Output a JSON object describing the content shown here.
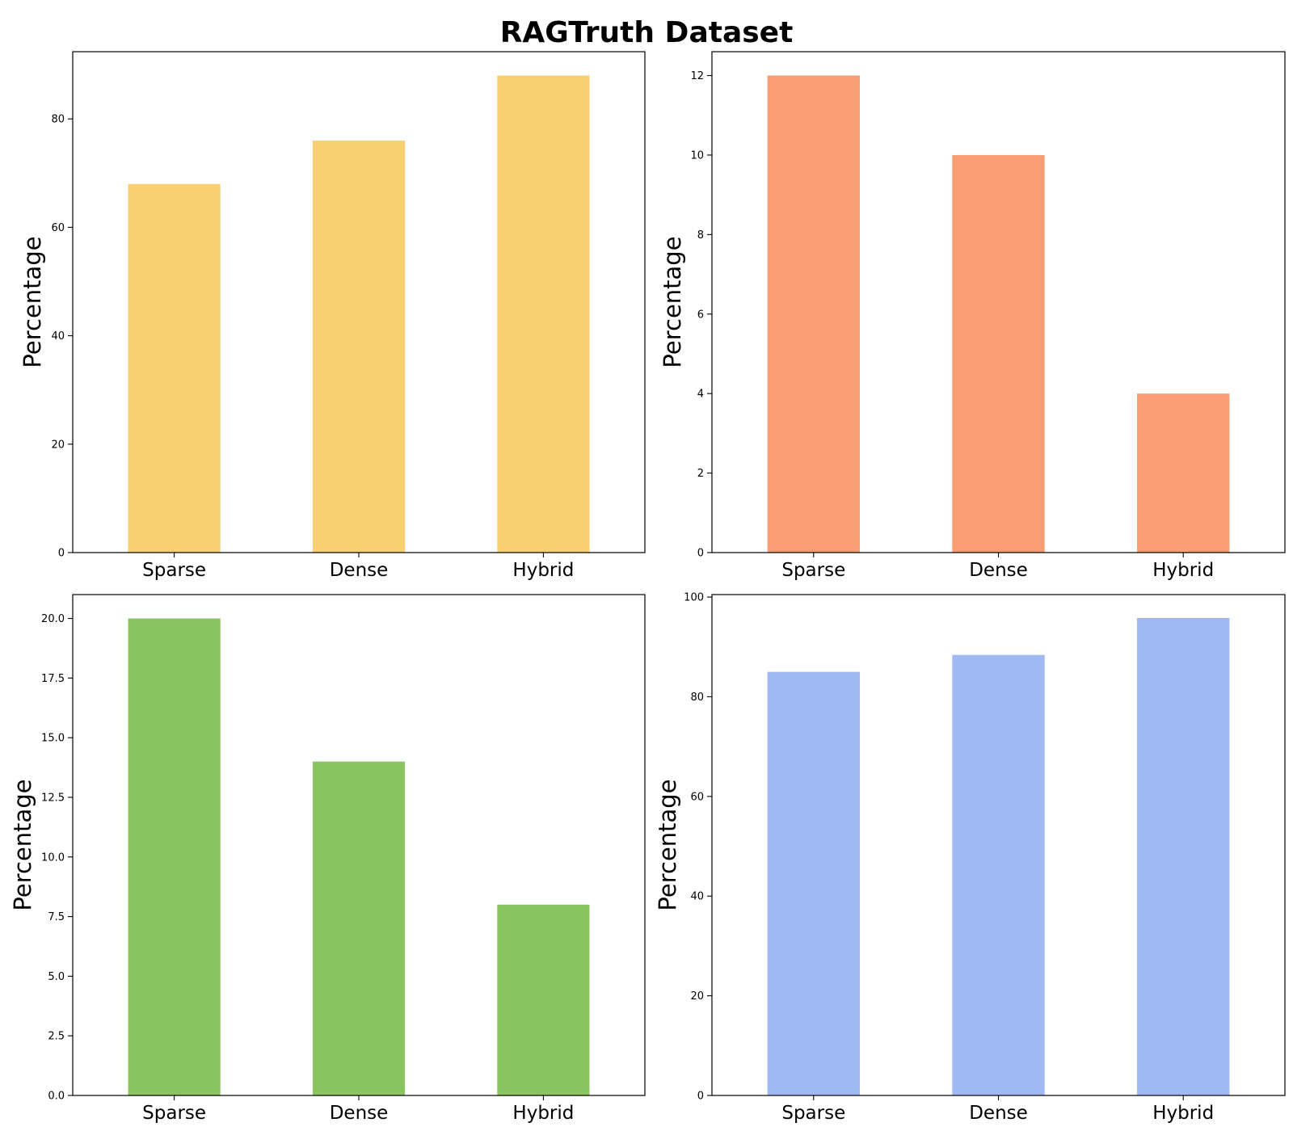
{
  "figure": {
    "title": "RAGTruth Dataset"
  },
  "chart_data": [
    {
      "type": "bar",
      "position": "top-left",
      "categories": [
        "Sparse",
        "Dense",
        "Hybrid"
      ],
      "values": [
        68,
        76,
        88
      ],
      "ylabel": "Percentage",
      "ylim": [
        0,
        92.4
      ],
      "yticks": [
        0,
        20,
        40,
        60,
        80
      ],
      "color": "#F6D073",
      "grid": false
    },
    {
      "type": "bar",
      "position": "top-right",
      "categories": [
        "Sparse",
        "Dense",
        "Hybrid"
      ],
      "values": [
        12,
        10,
        4
      ],
      "ylabel": "Percentage",
      "ylim": [
        0,
        12.6
      ],
      "yticks": [
        0,
        2,
        4,
        6,
        8,
        10,
        12
      ],
      "color": "#F99D75",
      "grid": false
    },
    {
      "type": "bar",
      "position": "bottom-left",
      "categories": [
        "Sparse",
        "Dense",
        "Hybrid"
      ],
      "values": [
        20,
        14,
        8
      ],
      "ylabel": "Percentage",
      "ylim": [
        0,
        21
      ],
      "yticks": [
        0,
        2.5,
        5,
        7.5,
        10,
        12.5,
        15,
        17.5,
        20
      ],
      "ytick_labels": [
        "0.0",
        "2.5",
        "5.0",
        "7.5",
        "10.0",
        "12.5",
        "15.0",
        "17.5",
        "20.0"
      ],
      "color": "#8AC562",
      "grid": false
    },
    {
      "type": "bar",
      "position": "bottom-right",
      "categories": [
        "Sparse",
        "Dense",
        "Hybrid"
      ],
      "values": [
        85,
        88.4,
        95.8
      ],
      "ylabel": "Percentage",
      "ylim": [
        0,
        100.5
      ],
      "yticks": [
        0,
        20,
        40,
        60,
        80,
        100
      ],
      "color": "#A0B9F3",
      "grid": false
    }
  ]
}
